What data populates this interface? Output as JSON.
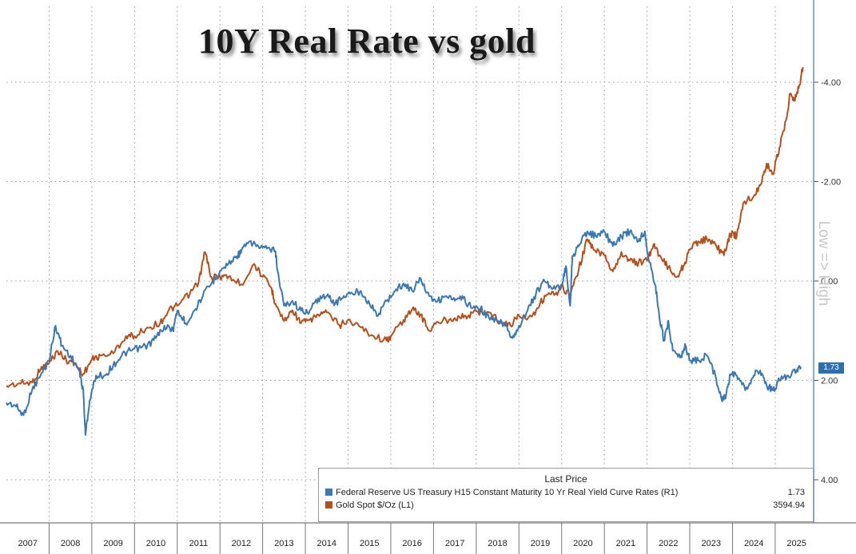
{
  "title": "10Y Real Rate vs gold",
  "axis_note": "Low => High",
  "legend": {
    "header": "Last Price",
    "items": [
      {
        "label": "Federal Reserve US Treasury H15 Constant Maturity 10 Yr Real Yield Curve Rates  (R1)",
        "value": "1.73",
        "color": "#3a78b4"
      },
      {
        "label": "Gold Spot $/Oz  (L1)",
        "value": "3594.94",
        "color": "#b5501d"
      }
    ]
  },
  "last_price_badge": "1.73",
  "chart_data": {
    "type": "line",
    "title": "10Y Real Rate vs gold",
    "x_axis": {
      "tick_labels": [
        "2007",
        "2008",
        "2009",
        "2010",
        "2011",
        "2012",
        "2013",
        "2014",
        "2015",
        "2016",
        "2017",
        "2018",
        "2019",
        "2020",
        "2021",
        "2022",
        "2023",
        "2024",
        "2025"
      ],
      "range": [
        2007.0,
        2025.9
      ]
    },
    "y_axis_right": {
      "inverted": true,
      "range": [
        -5.0,
        5.0
      ],
      "ticks": [
        -4,
        -2,
        0,
        2,
        4
      ],
      "tick_labels": [
        "-4.00",
        "-2.00",
        "0.00",
        "2.00",
        "4.00"
      ]
    },
    "grid": true,
    "legend_position": "bottom-right",
    "series": [
      {
        "name": "Federal Reserve US Treasury H15 Constant Maturity 10 Yr Real Yield Curve Rates (R1)",
        "axis": "right",
        "color": "#3a78b4",
        "points": [
          [
            2007.0,
            2.45
          ],
          [
            2007.2,
            2.5
          ],
          [
            2007.4,
            2.7
          ],
          [
            2007.6,
            2.2
          ],
          [
            2007.8,
            1.9
          ],
          [
            2008.0,
            1.6
          ],
          [
            2008.15,
            0.9
          ],
          [
            2008.3,
            1.3
          ],
          [
            2008.5,
            1.5
          ],
          [
            2008.7,
            1.8
          ],
          [
            2008.8,
            2.2
          ],
          [
            2008.85,
            3.1
          ],
          [
            2008.95,
            2.4
          ],
          [
            2009.1,
            1.9
          ],
          [
            2009.3,
            1.9
          ],
          [
            2009.5,
            1.7
          ],
          [
            2009.7,
            1.5
          ],
          [
            2009.9,
            1.4
          ],
          [
            2010.1,
            1.35
          ],
          [
            2010.3,
            1.3
          ],
          [
            2010.5,
            1.15
          ],
          [
            2010.7,
            0.9
          ],
          [
            2010.9,
            1.0
          ],
          [
            2011.0,
            0.6
          ],
          [
            2011.2,
            0.85
          ],
          [
            2011.4,
            0.6
          ],
          [
            2011.6,
            0.3
          ],
          [
            2011.8,
            0.05
          ],
          [
            2012.0,
            -0.2
          ],
          [
            2012.2,
            -0.35
          ],
          [
            2012.4,
            -0.5
          ],
          [
            2012.5,
            -0.6
          ],
          [
            2012.7,
            -0.8
          ],
          [
            2012.9,
            -0.7
          ],
          [
            2013.1,
            -0.65
          ],
          [
            2013.3,
            -0.6
          ],
          [
            2013.35,
            -0.2
          ],
          [
            2013.5,
            0.5
          ],
          [
            2013.7,
            0.4
          ],
          [
            2013.9,
            0.6
          ],
          [
            2014.1,
            0.6
          ],
          [
            2014.3,
            0.35
          ],
          [
            2014.5,
            0.3
          ],
          [
            2014.7,
            0.45
          ],
          [
            2014.9,
            0.3
          ],
          [
            2015.1,
            0.25
          ],
          [
            2015.3,
            0.2
          ],
          [
            2015.5,
            0.45
          ],
          [
            2015.7,
            0.7
          ],
          [
            2015.9,
            0.4
          ],
          [
            2016.1,
            0.2
          ],
          [
            2016.3,
            0.05
          ],
          [
            2016.5,
            0.2
          ],
          [
            2016.7,
            -0.05
          ],
          [
            2016.9,
            0.3
          ],
          [
            2017.1,
            0.4
          ],
          [
            2017.3,
            0.3
          ],
          [
            2017.5,
            0.4
          ],
          [
            2017.7,
            0.35
          ],
          [
            2017.9,
            0.55
          ],
          [
            2018.1,
            0.55
          ],
          [
            2018.3,
            0.75
          ],
          [
            2018.5,
            0.8
          ],
          [
            2018.7,
            0.9
          ],
          [
            2018.85,
            1.15
          ],
          [
            2019.0,
            0.9
          ],
          [
            2019.2,
            0.6
          ],
          [
            2019.4,
            0.25
          ],
          [
            2019.6,
            0.0
          ],
          [
            2019.8,
            0.15
          ],
          [
            2020.0,
            0.1
          ],
          [
            2020.1,
            -0.3
          ],
          [
            2020.2,
            0.5
          ],
          [
            2020.25,
            -0.5
          ],
          [
            2020.4,
            -0.7
          ],
          [
            2020.6,
            -1.0
          ],
          [
            2020.8,
            -0.9
          ],
          [
            2021.0,
            -1.0
          ],
          [
            2021.2,
            -0.7
          ],
          [
            2021.4,
            -0.9
          ],
          [
            2021.6,
            -1.0
          ],
          [
            2021.8,
            -0.8
          ],
          [
            2021.95,
            -1.0
          ],
          [
            2022.0,
            -0.6
          ],
          [
            2022.2,
            0.1
          ],
          [
            2022.3,
            0.8
          ],
          [
            2022.4,
            1.2
          ],
          [
            2022.5,
            0.8
          ],
          [
            2022.6,
            1.4
          ],
          [
            2022.8,
            1.5
          ],
          [
            2022.9,
            1.3
          ],
          [
            2023.0,
            1.6
          ],
          [
            2023.2,
            1.6
          ],
          [
            2023.4,
            1.5
          ],
          [
            2023.6,
            1.9
          ],
          [
            2023.75,
            2.4
          ],
          [
            2023.85,
            2.3
          ],
          [
            2023.95,
            1.9
          ],
          [
            2024.1,
            1.9
          ],
          [
            2024.3,
            2.2
          ],
          [
            2024.5,
            1.9
          ],
          [
            2024.65,
            1.8
          ],
          [
            2024.8,
            2.1
          ],
          [
            2024.95,
            2.2
          ],
          [
            2025.1,
            2.0
          ],
          [
            2025.3,
            1.9
          ],
          [
            2025.5,
            1.8
          ],
          [
            2025.6,
            1.73
          ]
        ]
      },
      {
        "name": "Gold Spot $/Oz (L1)",
        "axis": "left",
        "color": "#b5501d",
        "points": [
          [
            2007.0,
            640
          ],
          [
            2007.3,
            660
          ],
          [
            2007.6,
            670
          ],
          [
            2007.8,
            790
          ],
          [
            2008.0,
            850
          ],
          [
            2008.2,
            960
          ],
          [
            2008.4,
            880
          ],
          [
            2008.6,
            850
          ],
          [
            2008.8,
            750
          ],
          [
            2009.0,
            880
          ],
          [
            2009.2,
            920
          ],
          [
            2009.5,
            940
          ],
          [
            2009.8,
            1100
          ],
          [
            2010.0,
            1100
          ],
          [
            2010.3,
            1180
          ],
          [
            2010.6,
            1220
          ],
          [
            2010.8,
            1340
          ],
          [
            2011.0,
            1380
          ],
          [
            2011.3,
            1500
          ],
          [
            2011.5,
            1600
          ],
          [
            2011.65,
            1880
          ],
          [
            2011.8,
            1650
          ],
          [
            2012.0,
            1650
          ],
          [
            2012.2,
            1650
          ],
          [
            2012.5,
            1580
          ],
          [
            2012.8,
            1770
          ],
          [
            2013.0,
            1650
          ],
          [
            2013.2,
            1550
          ],
          [
            2013.3,
            1400
          ],
          [
            2013.5,
            1240
          ],
          [
            2013.7,
            1340
          ],
          [
            2013.9,
            1220
          ],
          [
            2014.1,
            1250
          ],
          [
            2014.3,
            1300
          ],
          [
            2014.5,
            1320
          ],
          [
            2014.8,
            1200
          ],
          [
            2015.0,
            1250
          ],
          [
            2015.3,
            1180
          ],
          [
            2015.6,
            1100
          ],
          [
            2015.9,
            1060
          ],
          [
            2016.0,
            1100
          ],
          [
            2016.3,
            1250
          ],
          [
            2016.5,
            1350
          ],
          [
            2016.7,
            1300
          ],
          [
            2016.9,
            1150
          ],
          [
            2017.1,
            1230
          ],
          [
            2017.4,
            1260
          ],
          [
            2017.6,
            1280
          ],
          [
            2017.8,
            1280
          ],
          [
            2018.0,
            1330
          ],
          [
            2018.3,
            1320
          ],
          [
            2018.6,
            1220
          ],
          [
            2018.8,
            1200
          ],
          [
            2019.0,
            1290
          ],
          [
            2019.3,
            1280
          ],
          [
            2019.5,
            1410
          ],
          [
            2019.7,
            1500
          ],
          [
            2019.9,
            1480
          ],
          [
            2020.0,
            1560
          ],
          [
            2020.2,
            1480
          ],
          [
            2020.4,
            1720
          ],
          [
            2020.6,
            2000
          ],
          [
            2020.75,
            1900
          ],
          [
            2021.0,
            1850
          ],
          [
            2021.2,
            1700
          ],
          [
            2021.4,
            1880
          ],
          [
            2021.6,
            1800
          ],
          [
            2021.8,
            1780
          ],
          [
            2022.0,
            1800
          ],
          [
            2022.15,
            1950
          ],
          [
            2022.3,
            1850
          ],
          [
            2022.5,
            1740
          ],
          [
            2022.7,
            1650
          ],
          [
            2022.85,
            1750
          ],
          [
            2023.0,
            1900
          ],
          [
            2023.2,
            1980
          ],
          [
            2023.4,
            2000
          ],
          [
            2023.6,
            1950
          ],
          [
            2023.8,
            1850
          ],
          [
            2023.95,
            2050
          ],
          [
            2024.1,
            2030
          ],
          [
            2024.25,
            2330
          ],
          [
            2024.5,
            2400
          ],
          [
            2024.65,
            2500
          ],
          [
            2024.8,
            2700
          ],
          [
            2024.95,
            2600
          ],
          [
            2025.1,
            2850
          ],
          [
            2025.25,
            3100
          ],
          [
            2025.35,
            3350
          ],
          [
            2025.45,
            3300
          ],
          [
            2025.55,
            3400
          ],
          [
            2025.65,
            3595
          ]
        ]
      }
    ]
  }
}
